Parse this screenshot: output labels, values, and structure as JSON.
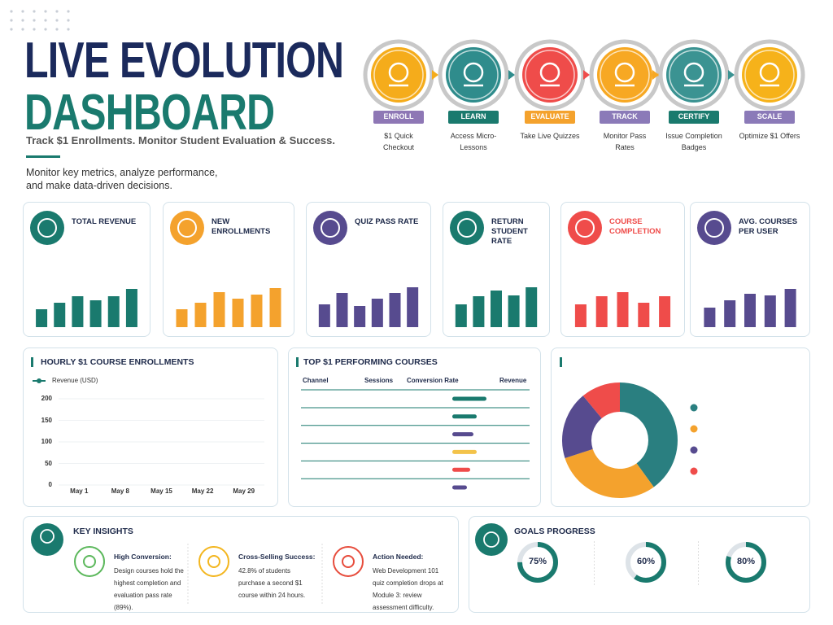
{
  "header": {
    "title": [
      "LIVE EVOLUTION",
      "DASHBOARD"
    ],
    "subtitle": "Track $1 Enrollments. Monitor Student Evaluation & Success.",
    "description": "Monitor key metrics, analyze performance, and make data-driven decisions."
  },
  "steps": [
    {
      "label": "ENROLL",
      "caption": "$1 Quick Checkout",
      "color": "#f5ac1b",
      "label_color": "#8e77b5"
    },
    {
      "label": "LEARN",
      "caption": "Access Micro-Lessons",
      "color": "#2f8c8c",
      "label_color": "#1a7a6e"
    },
    {
      "label": "EVALUATE",
      "caption": "Take Live Quizzes",
      "color": "#ef4c4a",
      "label_color": "#f4a22d"
    },
    {
      "label": "TRACK",
      "caption": "Monitor Pass Rates",
      "color": "#f7a823",
      "label_color": "#8b7ab8"
    },
    {
      "label": "CERTIFY",
      "caption": "Issue Completion Badges",
      "color": "#3b9392",
      "label_color": "#1a7a6e"
    },
    {
      "label": "SCALE",
      "caption": "Optimize $1 Offers",
      "color": "#f6b21a",
      "label_color": "#8b7ab8"
    }
  ],
  "kpis": [
    {
      "title": "TOTAL REVENUE",
      "color": "#1a7a6e",
      "title_color": "#1e2a4a",
      "values": [
        22,
        30,
        38,
        33,
        38,
        47
      ]
    },
    {
      "title": "NEW ENROLLMENTS",
      "color": "#f4a22d",
      "title_color": "#1e2a4a",
      "values": [
        22,
        30,
        43,
        35,
        40,
        48
      ]
    },
    {
      "title": "QUIZ PASS RATE",
      "color": "#574b8f",
      "title_color": "#1e2a4a",
      "values": [
        28,
        42,
        26,
        35,
        42,
        49
      ]
    },
    {
      "title": "RETURN STUDENT RATE",
      "color": "#1a7a6e",
      "title_color": "#1e2a4a",
      "values": [
        28,
        38,
        45,
        39,
        49
      ]
    },
    {
      "title": "COURSE COMPLETION",
      "color": "#ef4c4a",
      "title_color": "#ef4c4a",
      "values": [
        28,
        38,
        43,
        30,
        38
      ]
    },
    {
      "title": "AVG. COURSES PER USER",
      "color": "#574b8f",
      "title_color": "#1e2a4a",
      "values": [
        24,
        33,
        41,
        39,
        47
      ]
    }
  ],
  "chart_data": {
    "type": "line",
    "title": "HOURLY $1 COURSE ENROLLMENTS",
    "categories": [
      "May 1",
      "May 8",
      "May 15",
      "May 22",
      "May 29"
    ],
    "series": [
      {
        "name": "Revenue (USD)",
        "color": "#1a7a6e"
      }
    ],
    "ylim": [
      0,
      200
    ],
    "yticks": [
      0,
      50,
      100,
      150,
      200
    ],
    "grid": true
  },
  "table": {
    "title": "TOP $1 PERFORMING COURSES",
    "columns": [
      "Channel",
      "Sessions",
      "Conversion Rate",
      "Revenue"
    ],
    "rows": [
      {
        "conversion": 42,
        "color": "#1a7a6e"
      },
      {
        "conversion": 30,
        "color": "#1a7a6e"
      },
      {
        "conversion": 26,
        "color": "#574b8f"
      },
      {
        "conversion": 30,
        "color": "#f3c34a"
      },
      {
        "conversion": 22,
        "color": "#ef4c4a"
      },
      {
        "conversion": 18,
        "color": "#574b8f"
      }
    ]
  },
  "donut": {
    "values": [
      40,
      30,
      19,
      11
    ],
    "colors": [
      "#2a7f80",
      "#f4a22d",
      "#574b8f",
      "#ef4c4a"
    ]
  },
  "insights": {
    "title": "KEY INSIGHTS",
    "items": [
      {
        "heading": "High Conversion:",
        "text": "Design courses hold the highest completion and evaluation pass rate (89%).",
        "color": "#5cb85c"
      },
      {
        "heading": "Cross-Selling Success:",
        "text": "42.8% of students purchase a second $1 course within 24 hours.",
        "color": "#f3b61f"
      },
      {
        "heading": "Action Needed:",
        "text": "Web Development 101 quiz completion drops at Module 3: review assessment difficulty.",
        "color": "#e74c3c"
      }
    ]
  },
  "goals": {
    "title": "GOALS PROGRESS",
    "values": [
      75,
      60,
      80
    ],
    "value_labels": [
      "75%",
      "60%",
      "80%"
    ],
    "lim": [
      0,
      100
    ],
    "color": "#1a7a6e"
  }
}
